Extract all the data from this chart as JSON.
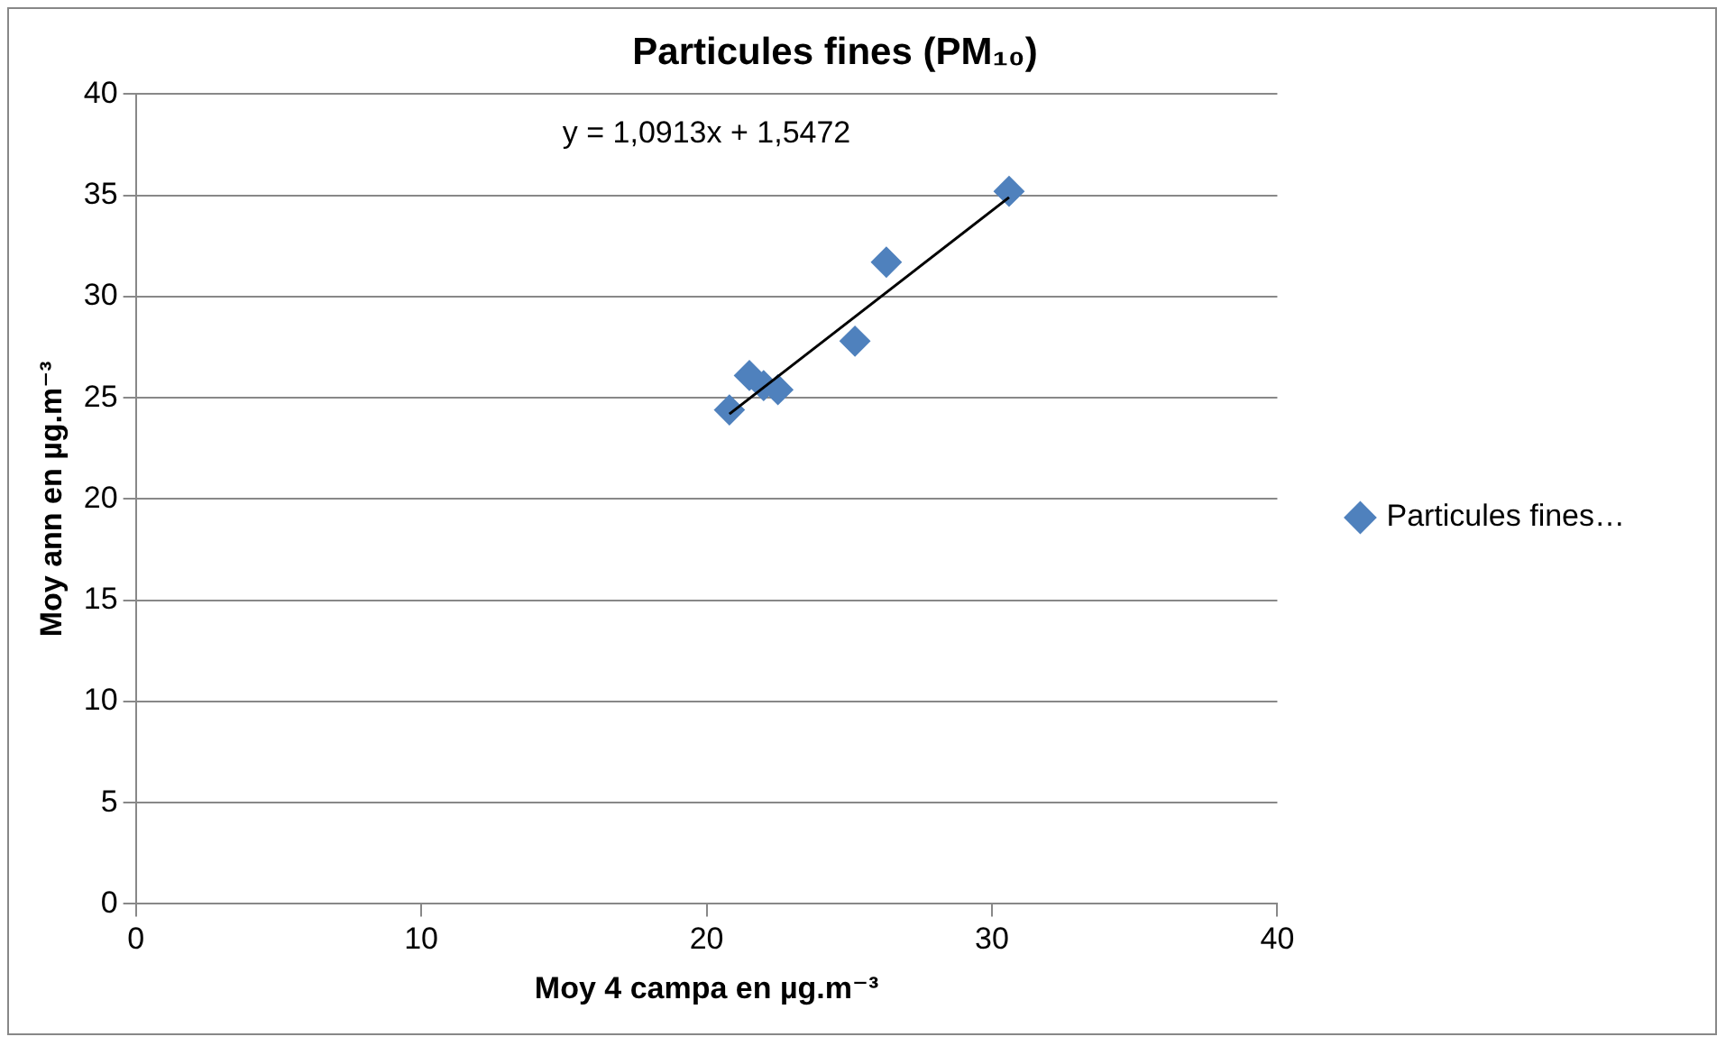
{
  "chart_data": {
    "type": "scatter",
    "title": "Particules fines (PM₁₀)",
    "xlabel": "Moy 4 campa en µg.m⁻³",
    "ylabel": "Moy ann en µg.m⁻³",
    "annotations": [
      "y = 1,0913x + 1,5472"
    ],
    "series": [
      {
        "name": "Particules fines…",
        "color": "#4f81bd",
        "x": [
          20.8,
          21.5,
          22.0,
          22.5,
          25.2,
          26.3,
          30.6
        ],
        "values": [
          24.4,
          26.1,
          25.6,
          25.4,
          27.8,
          31.7,
          35.2
        ]
      },
      {
        "type": "line",
        "marker": "none",
        "color": "#000000",
        "x": [
          20.8,
          30.6
        ],
        "values": [
          24.2,
          34.9
        ]
      }
    ],
    "xlim": [
      0,
      40
    ],
    "xticks": [
      0,
      10,
      20,
      30,
      40
    ],
    "ylim": [
      0,
      40
    ],
    "yticks": [
      0,
      5,
      10,
      15,
      20,
      25,
      30,
      35,
      40
    ],
    "grid": "y",
    "legend": "right",
    "marker": "diamond"
  }
}
